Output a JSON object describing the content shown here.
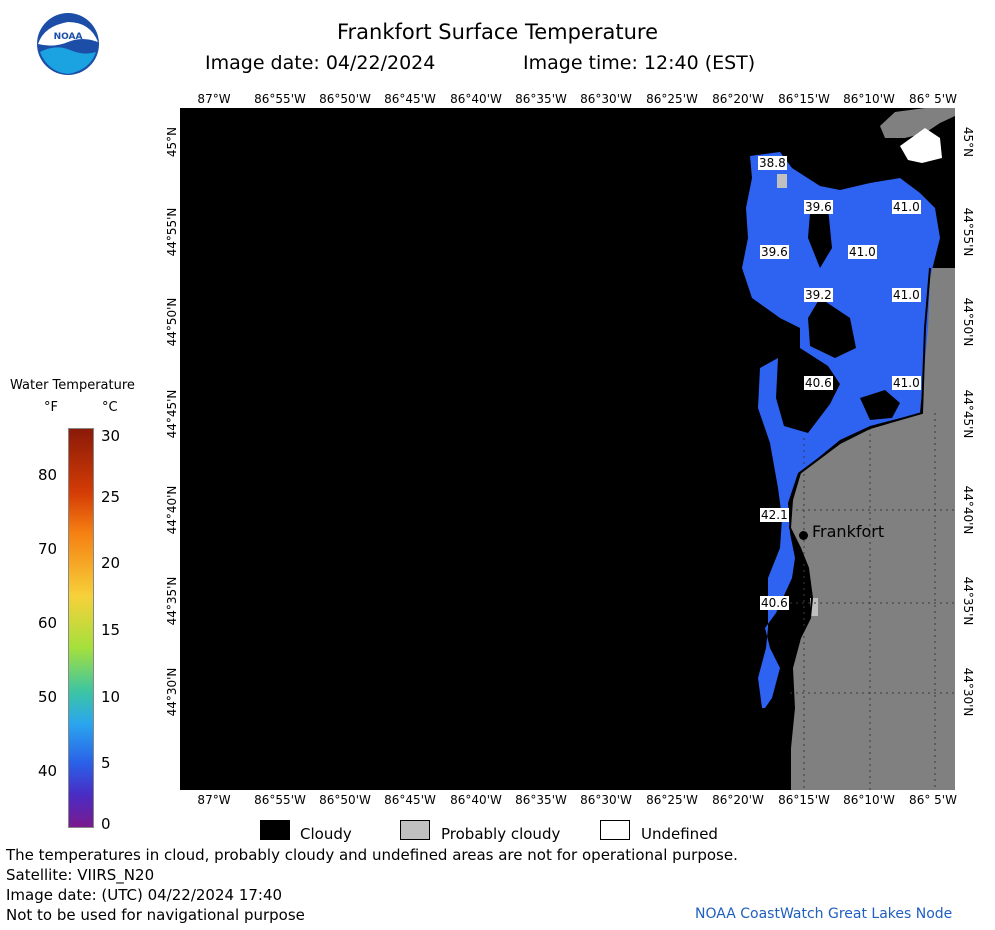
{
  "header": {
    "title": "Frankfort Surface Temperature",
    "image_date": "Image date: 04/22/2024",
    "image_time": "Image time: 12:40 (EST)"
  },
  "logo": {
    "text": "NOAA",
    "icon": "noaa-logo"
  },
  "axes": {
    "longitude_ticks": [
      "87°W",
      "86°55'W",
      "86°50'W",
      "86°45'W",
      "86°40'W",
      "86°35'W",
      "86°30'W",
      "86°25'W",
      "86°20'W",
      "86°15'W",
      "86°10'W",
      "86° 5'W"
    ],
    "latitude_ticks": [
      "45°N",
      "44°55'N",
      "44°50'N",
      "44°45'N",
      "44°40'N",
      "44°35'N",
      "44°30'N"
    ]
  },
  "map": {
    "city_label": "Frankfort",
    "temperature_labels": [
      "38.8",
      "39.6",
      "41.0",
      "39.6",
      "41.0",
      "39.2",
      "41.0",
      "40.6",
      "41.0",
      "42.1",
      "40.6"
    ],
    "colors": {
      "land": "#808080",
      "cloud": "#000000",
      "probably_cloudy": "#c0c0c0",
      "undefined": "#ffffff",
      "water": "#2e62f0"
    }
  },
  "legend": {
    "title": "Water Temperature",
    "unit_f": "°F",
    "unit_c": "°C",
    "fahrenheit_ticks": [
      "80",
      "70",
      "60",
      "50",
      "40"
    ],
    "celsius_ticks": [
      "30",
      "25",
      "20",
      "15",
      "10",
      "5",
      "0"
    ],
    "keys": [
      {
        "label": "Cloudy",
        "color": "#000000"
      },
      {
        "label": "Probably cloudy",
        "color": "#c0c0c0"
      },
      {
        "label": "Undefined",
        "color": "#ffffff"
      }
    ]
  },
  "footer": {
    "disclaimer": "The temperatures in cloud, probably cloudy and undefined areas are not for operational purpose.",
    "satellite": "Satellite: VIIRS_N20",
    "image_date_utc": "Image date: (UTC) 04/22/2024  17:40",
    "navigation_note": "Not to be used for navigational purpose",
    "credit": "NOAA CoastWatch Great Lakes Node"
  }
}
